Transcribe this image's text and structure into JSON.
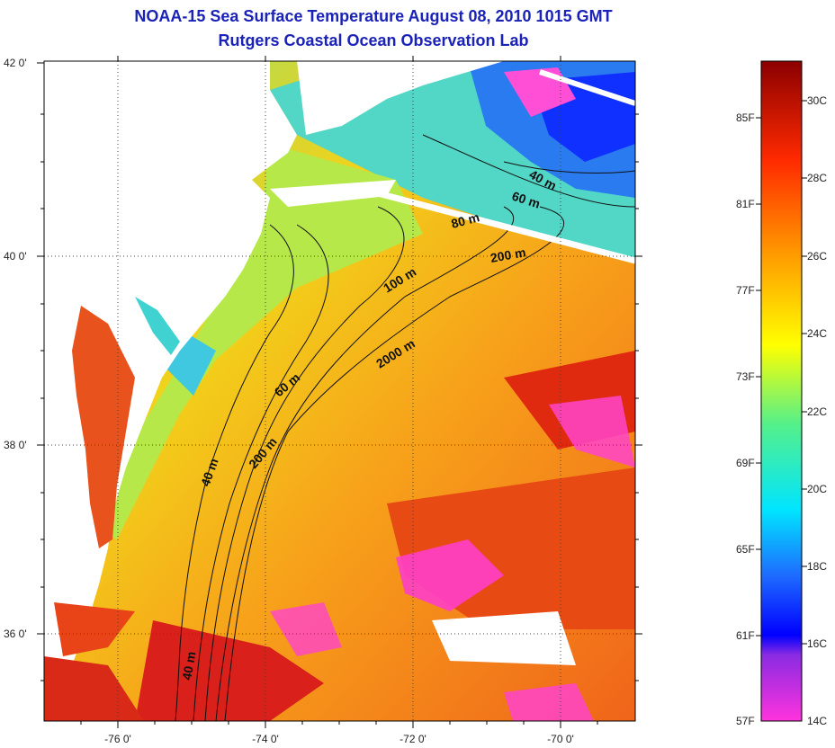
{
  "title": {
    "line1": "NOAA-15 Sea Surface Temperature August 08, 2010 1015 GMT",
    "line2": "Rutgers Coastal Ocean Observation Lab"
  },
  "axes": {
    "lon_ticks": [
      "-76 0'",
      "-74 0'",
      "-72 0'",
      "-70 0'"
    ],
    "lat_ticks": [
      "42 0'",
      "40 0'",
      "38 0'",
      "36 0'"
    ]
  },
  "contour_labels": [
    "40 m",
    "60 m",
    "80 m",
    "200 m",
    "100 m",
    "2000 m",
    "60 m",
    "200 m",
    "40 m",
    "40 m"
  ],
  "colorbar": {
    "fahrenheit": [
      "85F",
      "81F",
      "77F",
      "73F",
      "69F",
      "65F",
      "61F",
      "57F"
    ],
    "celsius": [
      "30C",
      "28C",
      "26C",
      "24C",
      "22C",
      "20C",
      "18C",
      "16C",
      "14C"
    ]
  },
  "colors": {
    "title": "#1a22b8",
    "land": "#ffffff",
    "ocean_warm": "#f26a12",
    "ocean_mid": "#f5b21a",
    "shelf_cool": "#e8e23a",
    "coastal": "#2fd0c8",
    "cold": "#1540ff",
    "cloud": "#ff33cc"
  }
}
